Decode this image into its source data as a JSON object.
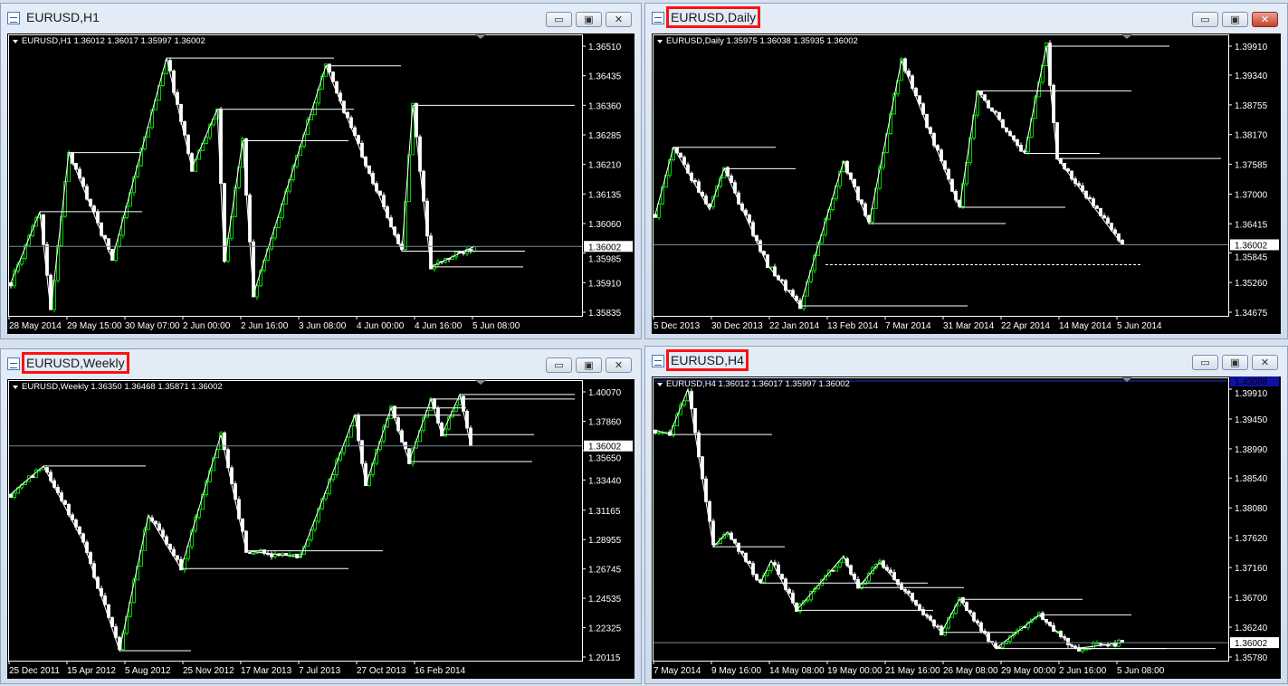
{
  "colors": {
    "background": "#000000",
    "up_candle": "#00ff00",
    "down_candle": "#ffffff",
    "grid_frame": "#ffffff",
    "bid_line": "#778899",
    "highlight": "#ff1010",
    "ask_line": "#1010a0"
  },
  "windows": [
    {
      "id": "h1",
      "title": "EURUSD,H1",
      "highlighted": false,
      "active": false,
      "info": "EURUSD,H1  1.36012 1.36017 1.35997 1.36002",
      "chart_data": {
        "type": "candlestick",
        "symbol": "EURUSD",
        "timeframe": "H1",
        "ohlc_last": {
          "open": 1.36012,
          "high": 1.36017,
          "low": 1.35997,
          "close": 1.36002
        },
        "current_price": "1.36002",
        "y_ticks": [
          "1.36510",
          "1.36435",
          "1.36360",
          "1.36285",
          "1.36210",
          "1.36135",
          "1.36060",
          "1.35985",
          "1.35910",
          "1.35835"
        ],
        "x_ticks": [
          "28 May 2014",
          "29 May 15:00",
          "30 May 07:00",
          "2 Jun 00:00",
          "2 Jun 16:00",
          "3 Jun 08:00",
          "4 Jun 00:00",
          "4 Jun 16:00",
          "5 Jun 08:00"
        ],
        "zigzag": [
          {
            "bar": 0,
            "price": 1.3591
          },
          {
            "bar": 8,
            "price": 1.3609
          },
          {
            "bar": 11,
            "price": 1.3584
          },
          {
            "bar": 16,
            "price": 1.3624
          },
          {
            "bar": 28,
            "price": 1.3597
          },
          {
            "bar": 43,
            "price": 1.3648
          },
          {
            "bar": 50,
            "price": 1.362
          },
          {
            "bar": 57,
            "price": 1.3635
          },
          {
            "bar": 59,
            "price": 1.3596
          },
          {
            "bar": 64,
            "price": 1.3627
          },
          {
            "bar": 67,
            "price": 1.3588
          },
          {
            "bar": 87,
            "price": 1.3646
          },
          {
            "bar": 108,
            "price": 1.3599
          },
          {
            "bar": 111,
            "price": 1.3636
          },
          {
            "bar": 116,
            "price": 1.3595
          },
          {
            "bar": 128,
            "price": 1.36002
          }
        ]
      }
    },
    {
      "id": "daily",
      "title": "EURUSD,Daily",
      "highlighted": true,
      "active": true,
      "info": "EURUSD,Daily  1.35975 1.36038 1.35935 1.36002",
      "chart_data": {
        "type": "candlestick",
        "symbol": "EURUSD",
        "timeframe": "Daily",
        "ohlc_last": {
          "open": 1.35975,
          "high": 1.36038,
          "low": 1.35935,
          "close": 1.36002
        },
        "current_price": "1.36002",
        "y_ticks": [
          "1.39910",
          "1.39340",
          "1.38755",
          "1.38170",
          "1.37585",
          "1.37000",
          "1.36415",
          "1.35845",
          "1.35260",
          "1.34675"
        ],
        "x_ticks": [
          "5 Dec 2013",
          "30 Dec 2013",
          "22 Jan 2014",
          "13 Feb 2014",
          "7 Mar 2014",
          "31 Mar 2014",
          "22 Apr 2014",
          "14 May 2014",
          "5 Jun 2014"
        ],
        "dashed_level": 1.3561,
        "zigzag": [
          {
            "bar": 0,
            "price": 1.366
          },
          {
            "bar": 5,
            "price": 1.3792
          },
          {
            "bar": 15,
            "price": 1.3669
          },
          {
            "bar": 19,
            "price": 1.375
          },
          {
            "bar": 31,
            "price": 1.356
          },
          {
            "bar": 40,
            "price": 1.348
          },
          {
            "bar": 52,
            "price": 1.3765
          },
          {
            "bar": 59,
            "price": 1.3642
          },
          {
            "bar": 68,
            "price": 1.3963
          },
          {
            "bar": 84,
            "price": 1.3674
          },
          {
            "bar": 89,
            "price": 1.3903
          },
          {
            "bar": 102,
            "price": 1.378
          },
          {
            "bar": 108,
            "price": 1.3991
          },
          {
            "bar": 111,
            "price": 1.377
          },
          {
            "bar": 129,
            "price": 1.36002
          }
        ]
      }
    },
    {
      "id": "weekly",
      "title": "EURUSD,Weekly",
      "highlighted": true,
      "active": false,
      "info": "EURUSD,Weekly  1.36350 1.36468 1.35871 1.36002",
      "chart_data": {
        "type": "candlestick",
        "symbol": "EURUSD",
        "timeframe": "Weekly",
        "ohlc_last": {
          "open": 1.3635,
          "high": 1.36468,
          "low": 1.35871,
          "close": 1.36002
        },
        "current_price": "1.36002",
        "y_ticks": [
          "1.40070",
          "1.37860",
          "1.35650",
          "1.33440",
          "1.31165",
          "1.28955",
          "1.26745",
          "1.24535",
          "1.22325",
          "1.20115"
        ],
        "x_ticks": [
          "25 Dec 2011",
          "15 Apr 2012",
          "5 Aug 2012",
          "25 Nov 2012",
          "17 Mar 2013",
          "7 Jul 2013",
          "27 Oct 2013",
          "16 Feb 2014"
        ],
        "zigzag": [
          {
            "bar": 0,
            "price": 1.3237
          },
          {
            "bar": 9,
            "price": 1.3449
          },
          {
            "bar": 20,
            "price": 1.2878
          },
          {
            "bar": 30,
            "price": 1.2059
          },
          {
            "bar": 38,
            "price": 1.308
          },
          {
            "bar": 47,
            "price": 1.2677
          },
          {
            "bar": 58,
            "price": 1.3685
          },
          {
            "bar": 65,
            "price": 1.2811
          },
          {
            "bar": 80,
            "price": 1.2764
          },
          {
            "bar": 95,
            "price": 1.3832
          },
          {
            "bar": 98,
            "price": 1.3302
          },
          {
            "bar": 105,
            "price": 1.3886
          },
          {
            "bar": 110,
            "price": 1.3483
          },
          {
            "bar": 116,
            "price": 1.3953
          },
          {
            "bar": 119,
            "price": 1.3685
          },
          {
            "bar": 124,
            "price": 1.3987
          },
          {
            "bar": 127,
            "price": 1.36002
          }
        ]
      }
    },
    {
      "id": "h4",
      "title": "EURUSD,H4",
      "highlighted": true,
      "active": false,
      "info": "EURUSD,H4  1.36012 1.36017 1.35997 1.36002",
      "chart_data": {
        "type": "candlestick",
        "symbol": "EURUSD",
        "timeframe": "H4",
        "ohlc_last": {
          "open": 1.36012,
          "high": 1.36017,
          "low": 1.35997,
          "close": 1.36002
        },
        "current_price": "1.36002",
        "ask_price": "1.40088",
        "y_ticks": [
          "1.39910",
          "1.39450",
          "1.38990",
          "1.38540",
          "1.38080",
          "1.37620",
          "1.37160",
          "1.36700",
          "1.36240",
          "1.35780"
        ],
        "x_ticks": [
          "7 May 2014",
          "9 May 16:00",
          "14 May 08:00",
          "19 May 00:00",
          "21 May 16:00",
          "26 May 08:00",
          "29 May 00:00",
          "2 Jun 16:00",
          "5 Jun 08:00"
        ],
        "zigzag": [
          {
            "bar": 0,
            "price": 1.3928
          },
          {
            "bar": 4,
            "price": 1.3921
          },
          {
            "bar": 9,
            "price": 1.3991
          },
          {
            "bar": 16,
            "price": 1.3748
          },
          {
            "bar": 20,
            "price": 1.3771
          },
          {
            "bar": 29,
            "price": 1.3692
          },
          {
            "bar": 32,
            "price": 1.3727
          },
          {
            "bar": 39,
            "price": 1.365
          },
          {
            "bar": 52,
            "price": 1.3734
          },
          {
            "bar": 56,
            "price": 1.3685
          },
          {
            "bar": 62,
            "price": 1.3724
          },
          {
            "bar": 79,
            "price": 1.3616
          },
          {
            "bar": 84,
            "price": 1.3667
          },
          {
            "bar": 94,
            "price": 1.3591
          },
          {
            "bar": 106,
            "price": 1.3643
          },
          {
            "bar": 116,
            "price": 1.3591
          },
          {
            "bar": 129,
            "price": 1.36002
          }
        ]
      }
    }
  ],
  "buttons": {
    "minimize": "▭",
    "restore": "▣",
    "close": "✕"
  }
}
